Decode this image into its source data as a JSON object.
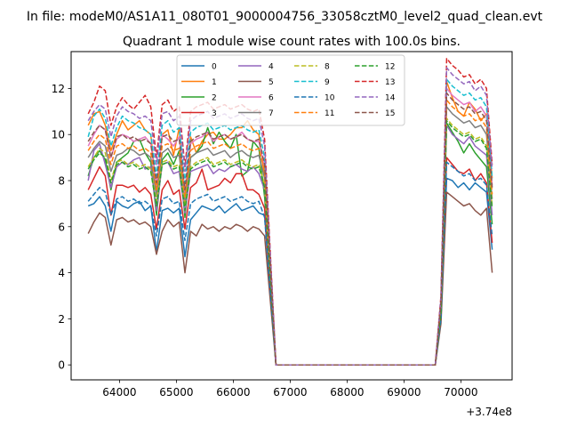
{
  "figure": {
    "suptitle": "In file: modeM0/AS1A11_080T01_9000004756_33058cztM0_level2_quad_clean.evt",
    "title": "Quadrant 1 module wise count rates with 100.0s bins.",
    "x_offset_label": "+3.74e8"
  },
  "chart_data": {
    "type": "line",
    "title": "Quadrant 1 module wise count rates with 100.0s bins.",
    "xlabel": "",
    "ylabel": "",
    "x_offset": 374000000,
    "xlim": [
      63150,
      70900
    ],
    "ylim": [
      -0.65,
      13.6
    ],
    "xticks": [
      64000,
      65000,
      66000,
      67000,
      68000,
      69000,
      70000
    ],
    "yticks": [
      0,
      2,
      4,
      6,
      8,
      10,
      12
    ],
    "grid": false,
    "legend_placement": "top-center",
    "legend_columns": 4,
    "x": [
      63450,
      63550,
      63650,
      63750,
      63850,
      63950,
      64050,
      64150,
      64250,
      64350,
      64450,
      64550,
      64650,
      64750,
      64850,
      64950,
      65050,
      65150,
      65250,
      65350,
      65450,
      65550,
      65650,
      65750,
      65850,
      65950,
      66050,
      66150,
      66250,
      66350,
      66450,
      66550,
      66750,
      69550,
      69650,
      69750,
      69850,
      69950,
      70050,
      70150,
      70250,
      70350,
      70450,
      70550
    ],
    "series": [
      {
        "name": "0",
        "color": "#1f77b4",
        "dash": "solid",
        "values": [
          6.9,
          7.0,
          7.3,
          6.9,
          5.8,
          7.1,
          6.9,
          6.8,
          7.0,
          7.1,
          6.7,
          6.9,
          4.9,
          6.7,
          6.8,
          6.6,
          6.8,
          4.7,
          6.3,
          6.6,
          6.9,
          6.8,
          6.7,
          6.9,
          6.6,
          6.8,
          7.0,
          6.7,
          6.8,
          6.9,
          6.6,
          6.5,
          0.0,
          0.0,
          2.0,
          8.1,
          8.0,
          7.7,
          7.9,
          7.6,
          7.9,
          7.7,
          7.5,
          5.0
        ]
      },
      {
        "name": "1",
        "color": "#ff7f0e",
        "dash": "solid",
        "values": [
          10.4,
          10.9,
          11.0,
          10.4,
          9.3,
          10.0,
          10.6,
          10.2,
          10.4,
          10.6,
          10.2,
          10.0,
          7.5,
          10.0,
          10.2,
          9.1,
          10.3,
          7.1,
          9.9,
          9.2,
          9.7,
          10.0,
          10.1,
          9.8,
          9.8,
          10.0,
          10.3,
          10.3,
          10.6,
          10.2,
          10.0,
          8.1,
          0.0,
          0.0,
          2.6,
          12.3,
          11.6,
          11.0,
          10.8,
          11.4,
          11.1,
          10.6,
          10.9,
          8.1
        ]
      },
      {
        "name": "2",
        "color": "#2ca02c",
        "dash": "solid",
        "values": [
          8.2,
          9.0,
          9.3,
          8.9,
          7.6,
          8.8,
          9.0,
          9.2,
          9.7,
          9.8,
          9.2,
          8.8,
          6.5,
          8.9,
          9.2,
          8.7,
          9.3,
          6.4,
          9.0,
          9.2,
          9.5,
          10.3,
          9.6,
          10.1,
          9.7,
          9.4,
          10.0,
          8.2,
          8.4,
          9.7,
          9.4,
          7.3,
          0.0,
          0.0,
          2.3,
          10.5,
          10.1,
          9.7,
          9.2,
          9.6,
          9.2,
          8.9,
          8.6,
          6.1
        ]
      },
      {
        "name": "3",
        "color": "#d62728",
        "dash": "solid",
        "values": [
          7.6,
          8.1,
          8.6,
          8.2,
          6.5,
          7.8,
          7.8,
          7.7,
          7.8,
          7.5,
          7.7,
          7.4,
          5.9,
          7.6,
          8.0,
          7.4,
          7.6,
          5.9,
          7.7,
          7.9,
          8.5,
          7.6,
          7.7,
          7.8,
          8.1,
          7.9,
          8.3,
          8.3,
          7.6,
          7.6,
          7.4,
          6.8,
          0.0,
          0.0,
          2.1,
          9.0,
          8.7,
          8.4,
          8.3,
          8.5,
          8.0,
          8.3,
          7.9,
          5.3
        ]
      },
      {
        "name": "4",
        "color": "#9467bd",
        "dash": "solid",
        "values": [
          8.0,
          9.3,
          9.6,
          8.7,
          7.7,
          8.6,
          8.8,
          8.7,
          8.9,
          9.0,
          8.5,
          8.6,
          6.7,
          8.7,
          8.8,
          8.3,
          8.4,
          6.6,
          8.4,
          8.5,
          8.6,
          8.7,
          8.3,
          8.5,
          8.4,
          8.6,
          8.7,
          8.5,
          8.4,
          8.6,
          8.3,
          7.6,
          0.0,
          0.0,
          2.4,
          10.4,
          10.0,
          9.8,
          9.6,
          9.9,
          9.5,
          9.3,
          9.1,
          6.5
        ]
      },
      {
        "name": "5",
        "color": "#8c564b",
        "dash": "solid",
        "values": [
          5.7,
          6.2,
          6.6,
          6.4,
          5.2,
          6.3,
          6.4,
          6.2,
          6.3,
          6.1,
          6.2,
          6.0,
          4.8,
          5.8,
          6.3,
          6.0,
          6.2,
          4.0,
          5.8,
          5.6,
          6.1,
          5.9,
          6.0,
          5.8,
          6.0,
          5.9,
          6.1,
          6.0,
          5.8,
          6.0,
          5.9,
          5.6,
          0.0,
          0.0,
          1.8,
          7.5,
          7.3,
          7.1,
          6.9,
          7.0,
          6.7,
          6.5,
          6.8,
          4.0
        ]
      },
      {
        "name": "6",
        "color": "#e377c2",
        "dash": "solid",
        "values": [
          9.5,
          10.0,
          10.4,
          10.2,
          9.0,
          9.8,
          10.0,
          9.9,
          9.7,
          9.8,
          9.9,
          9.6,
          7.8,
          10.0,
          9.8,
          9.5,
          9.9,
          7.5,
          9.6,
          9.8,
          9.9,
          10.1,
          9.7,
          9.9,
          10.0,
          9.8,
          9.9,
          10.1,
          9.8,
          9.7,
          9.7,
          8.6,
          0.0,
          0.0,
          2.7,
          12.0,
          11.7,
          11.5,
          11.3,
          11.4,
          11.0,
          11.2,
          10.8,
          7.8
        ]
      },
      {
        "name": "7",
        "color": "#7f7f7f",
        "dash": "solid",
        "values": [
          9.0,
          9.4,
          9.7,
          9.5,
          8.4,
          9.1,
          9.2,
          9.4,
          9.3,
          9.1,
          9.2,
          9.0,
          7.3,
          9.2,
          9.4,
          9.0,
          9.1,
          7.0,
          9.0,
          9.2,
          9.3,
          9.4,
          9.1,
          9.2,
          9.3,
          9.0,
          9.2,
          9.3,
          9.1,
          9.0,
          9.1,
          8.1,
          0.0,
          0.0,
          2.5,
          11.2,
          10.9,
          10.7,
          10.5,
          10.6,
          10.3,
          10.4,
          10.0,
          7.2
        ]
      },
      {
        "name": "8",
        "color": "#bcbd22",
        "dash": "dashed",
        "values": [
          8.6,
          9.0,
          9.4,
          9.2,
          8.0,
          8.8,
          8.9,
          8.7,
          8.8,
          8.6,
          8.7,
          8.5,
          7.1,
          8.8,
          8.9,
          8.6,
          8.7,
          6.9,
          8.6,
          8.8,
          8.9,
          9.0,
          8.7,
          8.8,
          8.9,
          8.7,
          8.8,
          8.9,
          8.7,
          8.6,
          8.7,
          7.8,
          0.0,
          0.0,
          2.4,
          10.7,
          10.4,
          10.2,
          10.0,
          10.1,
          9.8,
          9.9,
          9.5,
          6.9
        ]
      },
      {
        "name": "9",
        "color": "#17becf",
        "dash": "dashed",
        "values": [
          9.9,
          10.8,
          11.1,
          10.7,
          9.5,
          10.3,
          10.8,
          10.6,
          10.5,
          10.3,
          10.2,
          10.0,
          8.2,
          10.4,
          10.6,
          10.1,
          10.3,
          7.9,
          10.1,
          10.3,
          10.4,
          10.5,
          10.2,
          10.3,
          10.4,
          10.2,
          10.3,
          10.4,
          10.2,
          10.1,
          10.2,
          9.0,
          0.0,
          0.0,
          2.8,
          12.4,
          12.1,
          11.9,
          11.7,
          11.8,
          11.5,
          11.6,
          11.2,
          8.1
        ]
      },
      {
        "name": "10",
        "color": "#1f77b4",
        "dash": "dashed",
        "values": [
          7.1,
          7.4,
          7.7,
          7.5,
          6.5,
          7.2,
          7.3,
          7.1,
          7.2,
          7.0,
          7.1,
          6.9,
          5.6,
          7.2,
          7.3,
          7.0,
          7.1,
          5.4,
          7.0,
          7.2,
          7.3,
          7.4,
          7.1,
          7.2,
          7.3,
          7.1,
          7.2,
          7.3,
          7.1,
          7.0,
          7.1,
          6.4,
          0.0,
          0.0,
          2.0,
          8.8,
          8.6,
          8.4,
          8.2,
          8.3,
          8.0,
          8.1,
          7.8,
          5.6
        ]
      },
      {
        "name": "11",
        "color": "#ff7f0e",
        "dash": "dashed",
        "values": [
          9.3,
          9.7,
          10.0,
          9.8,
          8.7,
          9.5,
          9.6,
          9.4,
          9.5,
          9.3,
          9.4,
          9.2,
          7.6,
          9.5,
          9.6,
          9.3,
          9.4,
          7.3,
          9.3,
          9.5,
          9.6,
          9.7,
          9.4,
          9.5,
          9.6,
          9.4,
          9.5,
          9.6,
          9.4,
          9.3,
          9.4,
          8.4,
          0.0,
          0.0,
          2.6,
          11.5,
          11.2,
          11.0,
          10.8,
          10.9,
          10.6,
          10.7,
          10.3,
          7.4
        ]
      },
      {
        "name": "12",
        "color": "#2ca02c",
        "dash": "dashed",
        "values": [
          8.5,
          8.9,
          9.2,
          9.0,
          7.9,
          8.7,
          8.8,
          8.6,
          8.7,
          8.5,
          8.6,
          8.4,
          6.9,
          8.7,
          8.8,
          8.5,
          8.6,
          6.7,
          8.5,
          8.7,
          8.8,
          8.9,
          8.6,
          8.7,
          8.8,
          8.6,
          8.7,
          8.8,
          8.6,
          8.5,
          8.6,
          7.7,
          0.0,
          0.0,
          2.3,
          10.6,
          10.3,
          10.1,
          9.9,
          10.0,
          9.7,
          9.8,
          9.4,
          6.8
        ]
      },
      {
        "name": "13",
        "color": "#d62728",
        "dash": "dashed",
        "values": [
          10.9,
          11.4,
          12.1,
          11.9,
          10.4,
          11.2,
          11.6,
          11.3,
          11.1,
          11.4,
          11.7,
          11.2,
          9.0,
          11.3,
          11.5,
          11.0,
          11.2,
          8.6,
          11.0,
          11.2,
          11.3,
          11.4,
          11.1,
          11.2,
          11.3,
          11.1,
          11.2,
          11.3,
          11.1,
          11.0,
          11.1,
          9.8,
          0.0,
          0.0,
          3.0,
          13.3,
          13.0,
          12.8,
          12.5,
          12.6,
          12.2,
          12.4,
          12.0,
          8.7
        ]
      },
      {
        "name": "14",
        "color": "#9467bd",
        "dash": "dashed",
        "values": [
          10.6,
          11.0,
          11.3,
          11.1,
          9.9,
          10.8,
          11.2,
          11.0,
          10.9,
          10.7,
          10.8,
          10.6,
          8.7,
          10.9,
          11.0,
          10.6,
          10.8,
          8.4,
          10.6,
          10.8,
          10.9,
          11.0,
          10.7,
          10.8,
          10.9,
          10.7,
          10.8,
          10.9,
          10.7,
          10.6,
          10.7,
          9.5,
          0.0,
          0.0,
          2.9,
          12.9,
          12.6,
          12.4,
          12.2,
          12.3,
          11.9,
          12.1,
          11.7,
          8.5
        ]
      },
      {
        "name": "15",
        "color": "#8c564b",
        "dash": "dashed",
        "values": [
          9.7,
          10.1,
          10.4,
          10.2,
          9.0,
          9.9,
          10.0,
          9.8,
          9.9,
          9.7,
          9.8,
          9.6,
          7.9,
          9.9,
          10.0,
          9.7,
          9.8,
          7.6,
          9.7,
          9.9,
          10.0,
          10.1,
          9.8,
          9.9,
          10.0,
          9.8,
          9.9,
          10.0,
          9.8,
          9.7,
          9.8,
          8.7,
          0.0,
          0.0,
          2.7,
          11.8,
          11.5,
          11.3,
          11.1,
          11.2,
          10.9,
          11.0,
          10.6,
          7.7
        ]
      }
    ]
  }
}
